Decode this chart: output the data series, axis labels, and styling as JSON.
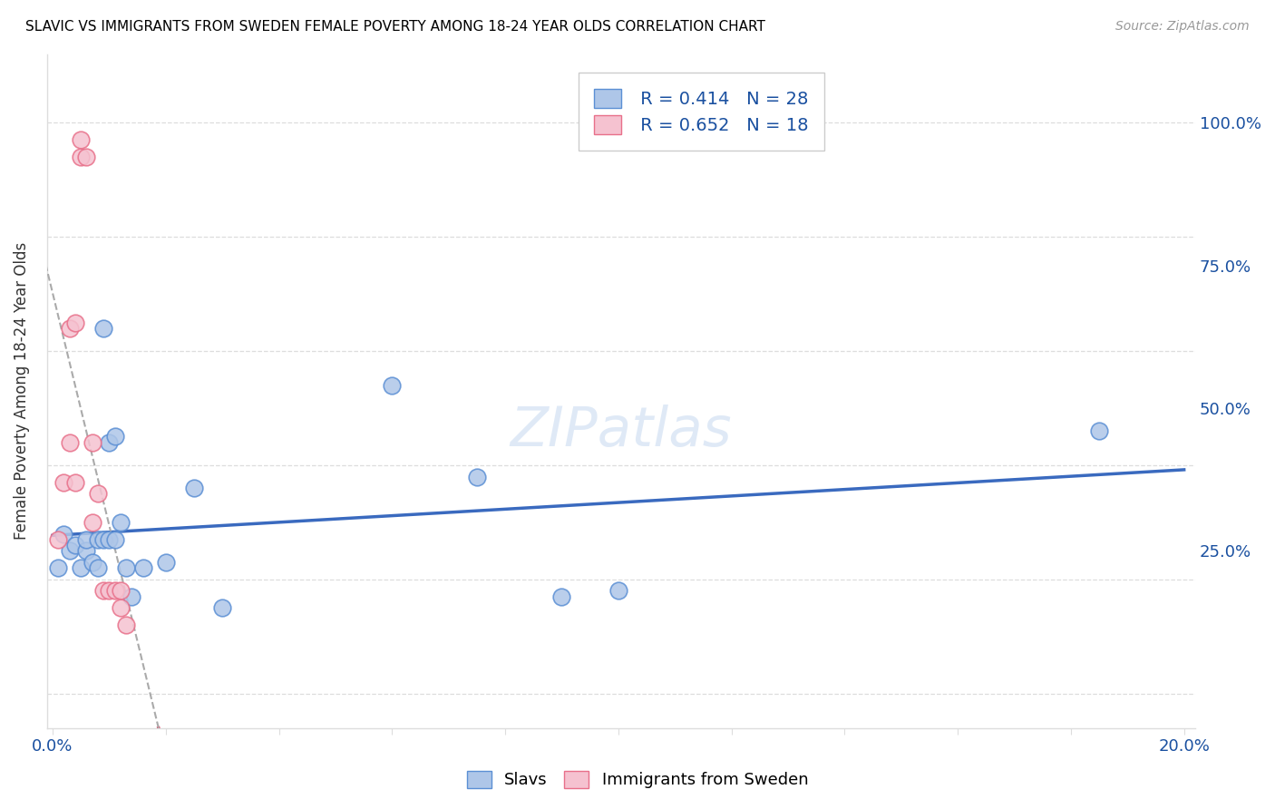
{
  "title": "SLAVIC VS IMMIGRANTS FROM SWEDEN FEMALE POVERTY AMONG 18-24 YEAR OLDS CORRELATION CHART",
  "source": "Source: ZipAtlas.com",
  "ylabel": "Female Poverty Among 18-24 Year Olds",
  "slavs_R": 0.414,
  "slavs_N": 28,
  "sweden_R": 0.652,
  "sweden_N": 18,
  "slavs_color": "#aec6e8",
  "slavs_edge_color": "#5b8fd4",
  "slavs_line_color": "#3a6abf",
  "sweden_color": "#f5c2d0",
  "sweden_edge_color": "#e8708a",
  "sweden_line_color": "#e8446a",
  "watermark": "ZIPatlas",
  "bg_color": "#ffffff",
  "grid_color": "#dddddd",
  "text_color": "#1a50a0",
  "slavs_x": [
    0.001,
    0.002,
    0.003,
    0.004,
    0.005,
    0.006,
    0.006,
    0.007,
    0.008,
    0.008,
    0.009,
    0.009,
    0.01,
    0.01,
    0.011,
    0.011,
    0.012,
    0.013,
    0.014,
    0.016,
    0.02,
    0.025,
    0.03,
    0.06,
    0.075,
    0.09,
    0.1,
    0.185
  ],
  "slavs_y": [
    0.22,
    0.28,
    0.25,
    0.26,
    0.22,
    0.25,
    0.27,
    0.23,
    0.27,
    0.22,
    0.27,
    0.64,
    0.27,
    0.44,
    0.27,
    0.45,
    0.3,
    0.22,
    0.17,
    0.22,
    0.23,
    0.36,
    0.15,
    0.54,
    0.38,
    0.17,
    0.18,
    0.46
  ],
  "sweden_x": [
    0.001,
    0.002,
    0.003,
    0.003,
    0.004,
    0.004,
    0.005,
    0.005,
    0.006,
    0.007,
    0.007,
    0.008,
    0.009,
    0.01,
    0.011,
    0.012,
    0.012,
    0.013
  ],
  "sweden_y": [
    0.27,
    0.37,
    0.44,
    0.64,
    0.37,
    0.65,
    0.94,
    0.97,
    0.94,
    0.3,
    0.44,
    0.35,
    0.18,
    0.18,
    0.18,
    0.15,
    0.18,
    0.12
  ],
  "x_min": -0.001,
  "x_max": 0.202,
  "y_min": -0.06,
  "y_max": 1.12,
  "x_ticks": [
    0.0,
    0.02,
    0.04,
    0.06,
    0.08,
    0.1,
    0.12,
    0.14,
    0.16,
    0.18,
    0.2
  ],
  "x_tick_labels": [
    "0.0%",
    "",
    "",
    "",
    "",
    "",
    "",
    "",
    "",
    "",
    "20.0%"
  ],
  "y_ticks": [
    0.0,
    0.25,
    0.5,
    0.75,
    1.0
  ],
  "y_tick_labels_right": [
    "",
    "25.0%",
    "50.0%",
    "75.0%",
    "100.0%"
  ]
}
